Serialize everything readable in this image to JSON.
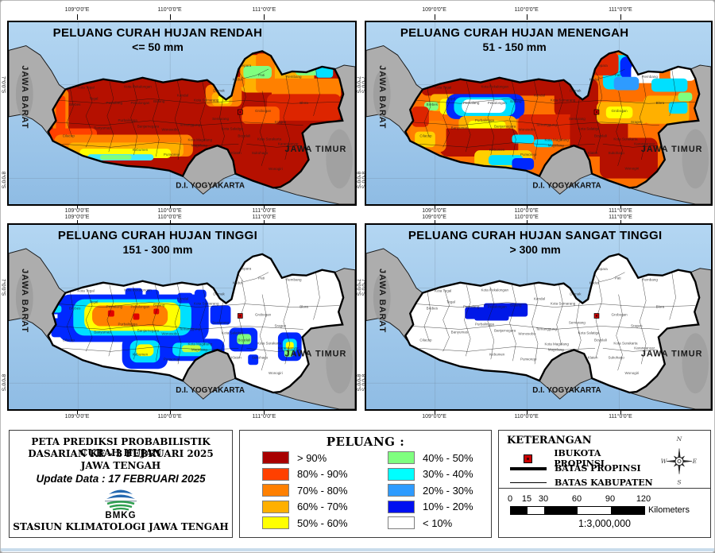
{
  "coords": {
    "lon": [
      "109°0'0\"E",
      "110°0'0\"E",
      "111°0'0\"E"
    ],
    "lat": [
      "7°0'0\"S",
      "8°0'0\"S"
    ]
  },
  "neighbors": {
    "west": "JAWA BARAT",
    "east": "JAWA TIMUR",
    "diy": "D.I. YOGYAKARTA"
  },
  "panels": [
    {
      "title": "PELUANG CURAH HUJAN RENDAH",
      "subtitle": "<= 50 mm",
      "base": "#B51000",
      "patches": [
        [
          56,
          86,
          20,
          70,
          "#FF8000",
          6
        ],
        [
          60,
          94,
          12,
          52,
          "#FF4000",
          4
        ],
        [
          52,
          136,
          60,
          26,
          "#FF4000",
          6
        ],
        [
          58,
          144,
          176,
          28,
          "#FF8000",
          8
        ],
        [
          76,
          154,
          146,
          18,
          "#FFB000",
          6
        ],
        [
          90,
          162,
          116,
          12,
          "#FFFF00",
          5
        ],
        [
          100,
          169,
          84,
          8,
          "#40E8FF",
          4
        ],
        [
          116,
          170,
          40,
          6,
          "#7FFF7F",
          3
        ],
        [
          294,
          42,
          94,
          48,
          "#FFB000",
          8
        ],
        [
          314,
          40,
          24,
          50,
          "#FF8000",
          5
        ],
        [
          298,
          56,
          36,
          16,
          "#7FFF7F",
          5
        ],
        [
          364,
          54,
          32,
          14,
          "#7FFF7F",
          5
        ],
        [
          390,
          58,
          22,
          13,
          "#00E0FF",
          4
        ],
        [
          334,
          72,
          88,
          26,
          "#FF8000",
          6
        ],
        [
          328,
          92,
          94,
          34,
          "#DD2500",
          8
        ],
        [
          250,
          80,
          46,
          28,
          "#FF8000",
          7
        ],
        [
          258,
          90,
          26,
          17,
          "#FFB000",
          5
        ],
        [
          266,
          94,
          14,
          10,
          "#FFFF00",
          3
        ],
        [
          296,
          108,
          48,
          22,
          "#FF6000",
          6
        ],
        [
          280,
          70,
          20,
          13,
          "#FF8000",
          4
        ]
      ]
    },
    {
      "title": "PELUANG CURAH HUJAN MENENGAH",
      "subtitle": "51 - 150 mm",
      "base": "#FF7000",
      "patches": [
        [
          70,
          70,
          180,
          24,
          "#B51000",
          8
        ],
        [
          240,
          72,
          56,
          50,
          "#B51000",
          10
        ],
        [
          82,
          92,
          34,
          22,
          "#FFB000",
          5
        ],
        [
          74,
          102,
          18,
          11,
          "#7FFF7F",
          4
        ],
        [
          94,
          98,
          40,
          20,
          "#FFFF00",
          5
        ],
        [
          102,
          92,
          100,
          32,
          "#0028FF",
          12
        ],
        [
          112,
          96,
          78,
          24,
          "#00E0FF",
          10
        ],
        [
          122,
          99,
          56,
          17,
          "#FFFFFF",
          8
        ],
        [
          118,
          120,
          74,
          28,
          "#FFB000",
          8
        ],
        [
          130,
          126,
          48,
          17,
          "#FFFF00",
          6
        ],
        [
          94,
          136,
          100,
          36,
          "#B51000",
          10
        ],
        [
          56,
          126,
          46,
          40,
          "#FF8000",
          8
        ],
        [
          62,
          140,
          26,
          20,
          "#FFD000",
          5
        ],
        [
          138,
          164,
          74,
          22,
          "#FFD000",
          7
        ],
        [
          156,
          170,
          44,
          13,
          "#00E0FF",
          5
        ],
        [
          186,
          174,
          28,
          15,
          "#0028FF",
          5
        ],
        [
          194,
          118,
          74,
          32,
          "#DD2500",
          9
        ],
        [
          186,
          144,
          28,
          11,
          "#00E0FF",
          4
        ],
        [
          214,
          150,
          24,
          10,
          "#00E0FF",
          4
        ],
        [
          260,
          110,
          74,
          62,
          "#B51000",
          12
        ],
        [
          298,
          148,
          74,
          52,
          "#B51000",
          10
        ],
        [
          294,
          102,
          66,
          28,
          "#FFB000",
          7
        ],
        [
          306,
          108,
          34,
          15,
          "#FFFF00",
          5
        ],
        [
          354,
          94,
          58,
          36,
          "#FFB000",
          8
        ],
        [
          386,
          102,
          24,
          15,
          "#00E0FF",
          4
        ],
        [
          398,
          90,
          18,
          11,
          "#7FFF7F",
          4
        ],
        [
          302,
          42,
          36,
          44,
          "#00E0FF",
          8
        ],
        [
          324,
          44,
          48,
          28,
          "#0028FF",
          8
        ],
        [
          338,
          54,
          36,
          24,
          "#FFFFFF",
          6
        ],
        [
          388,
          56,
          32,
          19,
          "#FFFFFF",
          6
        ],
        [
          364,
          72,
          46,
          17,
          "#00E0FF",
          5
        ],
        [
          316,
          70,
          32,
          17,
          "#2E9BFF",
          5
        ],
        [
          286,
          38,
          36,
          30,
          "#DD2500",
          8
        ],
        [
          58,
          108,
          22,
          26,
          "#DD2500",
          6
        ]
      ]
    },
    {
      "title": "PELUANG CURAH HUJAN TINGGI",
      "subtitle": "151 - 300 mm",
      "base": "#FFFFFF",
      "patches": [
        [
          62,
          88,
          192,
          60,
          "#0028FF",
          16
        ],
        [
          82,
          94,
          150,
          46,
          "#00E0FF",
          14
        ],
        [
          96,
          98,
          122,
          36,
          "#FFFF00",
          12
        ],
        [
          106,
          102,
          96,
          26,
          "#FF8000",
          10
        ],
        [
          126,
          108,
          8,
          8,
          "#E00000",
          2
        ],
        [
          158,
          112,
          8,
          8,
          "#E00000",
          2
        ],
        [
          184,
          106,
          7,
          7,
          "#E00000",
          2
        ],
        [
          144,
          140,
          58,
          42,
          "#0028FF",
          12
        ],
        [
          154,
          146,
          38,
          28,
          "#00E0FF",
          9
        ],
        [
          162,
          151,
          22,
          15,
          "#FFFF00",
          6
        ],
        [
          196,
          144,
          78,
          28,
          "#0028FF",
          10
        ],
        [
          208,
          149,
          50,
          17,
          "#00E0FF",
          7
        ],
        [
          220,
          152,
          24,
          9,
          "#BFFF40",
          4
        ],
        [
          50,
          96,
          24,
          17,
          "#0028FF",
          4
        ],
        [
          54,
          118,
          20,
          24,
          "#0028FF",
          4
        ],
        [
          56,
          102,
          11,
          9,
          "#00E0FF",
          3
        ],
        [
          214,
          86,
          20,
          13,
          "#0028FF",
          4
        ],
        [
          236,
          82,
          15,
          11,
          "#0028FF",
          4
        ],
        [
          256,
          102,
          26,
          24,
          "#0028FF",
          4
        ],
        [
          280,
          130,
          36,
          30,
          "#0028FF",
          7
        ],
        [
          290,
          138,
          18,
          13,
          "#7FFF7F",
          4
        ],
        [
          304,
          164,
          13,
          13,
          "#0028FF",
          3
        ],
        [
          342,
          136,
          30,
          36,
          "#0028FF",
          7
        ],
        [
          348,
          144,
          18,
          17,
          "#00E0FF",
          5
        ],
        [
          352,
          148,
          10,
          9,
          "#FFFF00",
          3
        ],
        [
          350,
          158,
          11,
          9,
          "#7FFF7F",
          3
        ],
        [
          148,
          80,
          22,
          13,
          "#0028FF",
          4
        ],
        [
          174,
          82,
          17,
          11,
          "#0028FF",
          4
        ]
      ]
    },
    {
      "title": "PELUANG CURAH HUJAN SANGAT TINGGI",
      "subtitle": "> 300 mm",
      "base": "#FFFFFF",
      "patches": [
        [
          126,
          104,
          36,
          15,
          "#0018E8",
          3
        ],
        [
          150,
          99,
          56,
          17,
          "#0018E8",
          3
        ],
        [
          138,
          110,
          44,
          11,
          "#0018E8",
          3
        ]
      ]
    }
  ],
  "districts": [
    [
      "Brebes",
      84,
      107
    ],
    [
      "Tegal",
      108,
      99
    ],
    [
      "Kota Tegal",
      98,
      85
    ],
    [
      "Pemalang",
      134,
      105
    ],
    [
      "Kota Pekalongan",
      164,
      84
    ],
    [
      "Pekalongan",
      167,
      105
    ],
    [
      "Batang",
      191,
      103
    ],
    [
      "Kendal",
      221,
      95
    ],
    [
      "Kota Semarang",
      251,
      101
    ],
    [
      "Demak",
      267,
      89
    ],
    [
      "Jepara",
      301,
      57
    ],
    [
      "Kudus",
      291,
      75
    ],
    [
      "Pati",
      321,
      69
    ],
    [
      "Rembang",
      362,
      71
    ],
    [
      "Blora",
      375,
      105
    ],
    [
      "Grobogan",
      323,
      115
    ],
    [
      "Semarang",
      269,
      125
    ],
    [
      "Kota Salatiga",
      284,
      138
    ],
    [
      "Temanggung",
      230,
      133
    ],
    [
      "Wonosobo",
      205,
      139
    ],
    [
      "Banjarnegara",
      177,
      135
    ],
    [
      "Purbalingga",
      151,
      127
    ],
    [
      "Banyumas",
      119,
      137
    ],
    [
      "Cilacap",
      76,
      147
    ],
    [
      "Kebumen",
      167,
      165
    ],
    [
      "Purworejo",
      207,
      171
    ],
    [
      "Kota Magelang",
      243,
      152
    ],
    [
      "Magelang",
      242,
      159
    ],
    [
      "Boyolali",
      299,
      147
    ],
    [
      "Klaten",
      289,
      169
    ],
    [
      "Kota Surakarta",
      331,
      151
    ],
    [
      "Sukoharjo",
      319,
      169
    ],
    [
      "Karanganyar",
      355,
      157
    ],
    [
      "Sragen",
      345,
      129
    ],
    [
      "Wonogiri",
      339,
      189
    ]
  ],
  "info": {
    "line1": "PETA PREDIKSI PROBABILISTIK CURAH HUJAN",
    "line2": "DASARIAN KE - 3 FEBRUARI 2025",
    "line3": "JAWA TENGAH",
    "update": "Update Data : 17 FEBRUARI 2025",
    "agency": "BMKG",
    "station": "STASIUN KLIMATOLOGI JAWA TENGAH"
  },
  "legend": {
    "title": "PELUANG :",
    "items": [
      [
        "> 90%",
        "#A80000"
      ],
      [
        "80% - 90%",
        "#FF4000"
      ],
      [
        "70% - 80%",
        "#FF8000"
      ],
      [
        "60% - 70%",
        "#FFB000"
      ],
      [
        "50% - 60%",
        "#FFFF00"
      ],
      [
        "40% - 50%",
        "#7FFF7F"
      ],
      [
        "30% - 40%",
        "#00FFFF"
      ],
      [
        "20% - 30%",
        "#2E9BFF"
      ],
      [
        "10% - 20%",
        "#0010F0"
      ],
      [
        "< 10%",
        "#FFFFFF"
      ]
    ]
  },
  "keterangan": {
    "title": "KETERANGAN",
    "capital": "IBUKOTA PROPINSI",
    "prov": "BATAS PROPINSI",
    "kab": "BATAS KABUPATEN",
    "compass": {
      "n": "N",
      "e": "E",
      "s": "S",
      "w": "W"
    },
    "scale": {
      "ticks": [
        0,
        15,
        30,
        60,
        90,
        120
      ],
      "unit": "Kilometers",
      "ratio": "1:3,000,000"
    }
  }
}
